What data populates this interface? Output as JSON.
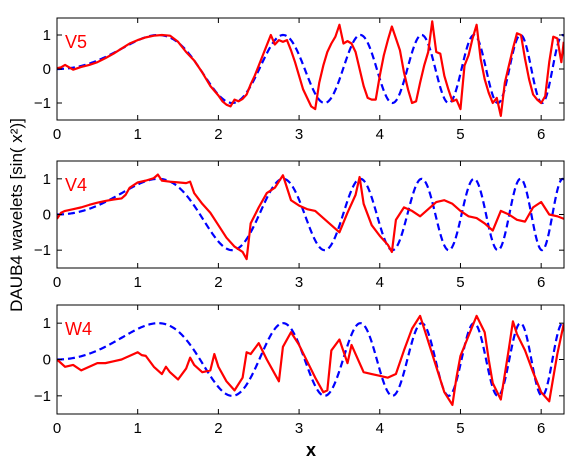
{
  "chart_data": {
    "type": "line",
    "ylabel": "DAUB4 wavelets [sin( x²)]",
    "xlabel": "x",
    "xlim": [
      0,
      6.283
    ],
    "ylim": [
      -1.5,
      1.5
    ],
    "xticks": [
      "0",
      "1",
      "2",
      "3",
      "4",
      "5",
      "6"
    ],
    "yticks": [
      "-1",
      "0",
      "1"
    ],
    "colors": {
      "reference": "#0000ff",
      "approximation": "#ff0000",
      "label": "#ff0000"
    },
    "panels": [
      {
        "label": "V5",
        "series": [
          {
            "style": "dashed-blue",
            "function": "sin(x^2)"
          },
          {
            "style": "solid-red",
            "x": [
              0,
              0.05,
              0.1,
              0.15,
              0.2,
              0.3,
              0.4,
              0.5,
              0.6,
              0.7,
              0.8,
              0.9,
              1.0,
              1.1,
              1.2,
              1.3,
              1.4,
              1.5,
              1.6,
              1.7,
              1.8,
              1.9,
              2.0,
              2.05,
              2.1,
              2.15,
              2.2,
              2.25,
              2.3,
              2.35,
              2.4,
              2.45,
              2.5,
              2.55,
              2.6,
              2.65,
              2.7,
              2.75,
              2.8,
              2.85,
              2.9,
              2.95,
              3.0,
              3.05,
              3.1,
              3.15,
              3.2,
              3.25,
              3.3,
              3.35,
              3.4,
              3.45,
              3.5,
              3.55,
              3.6,
              3.65,
              3.7,
              3.75,
              3.8,
              3.85,
              3.9,
              3.95,
              4.0,
              4.05,
              4.1,
              4.15,
              4.2,
              4.25,
              4.3,
              4.35,
              4.4,
              4.45,
              4.5,
              4.55,
              4.6,
              4.65,
              4.7,
              4.75,
              4.8,
              4.85,
              4.9,
              4.95,
              5.0,
              5.05,
              5.1,
              5.15,
              5.2,
              5.25,
              5.3,
              5.35,
              5.4,
              5.45,
              5.5,
              5.55,
              5.6,
              5.65,
              5.7,
              5.75,
              5.8,
              5.85,
              5.9,
              5.95,
              6.0,
              6.05,
              6.1,
              6.15,
              6.2,
              6.25,
              6.28
            ],
            "y": [
              0.02,
              0.05,
              0.12,
              0.05,
              -0.02,
              0.06,
              0.12,
              0.2,
              0.32,
              0.45,
              0.6,
              0.75,
              0.85,
              0.93,
              0.98,
              1.0,
              0.98,
              0.8,
              0.5,
              0.25,
              -0.1,
              -0.5,
              -0.78,
              -0.95,
              -1.05,
              -1.1,
              -0.9,
              -0.95,
              -0.88,
              -0.75,
              -0.45,
              -0.2,
              0.1,
              0.4,
              0.7,
              1.0,
              0.72,
              0.85,
              0.8,
              0.85,
              0.55,
              0.2,
              -0.2,
              -0.6,
              -0.85,
              -1.1,
              -1.18,
              -0.4,
              0.1,
              0.5,
              0.75,
              0.95,
              1.3,
              0.75,
              0.82,
              0.75,
              0.5,
              0.0,
              -0.5,
              -0.85,
              -0.9,
              -0.9,
              -0.2,
              0.4,
              0.85,
              1.25,
              0.9,
              0.55,
              -0.1,
              -0.6,
              -1.0,
              -0.95,
              -0.4,
              0.1,
              0.5,
              1.4,
              0.5,
              0.45,
              -0.2,
              -0.6,
              -0.95,
              -0.9,
              -1.18,
              0.1,
              0.4,
              0.9,
              1.3,
              0.3,
              -0.3,
              -0.7,
              -1.0,
              -0.85,
              -1.38,
              -0.4,
              0.1,
              0.6,
              1.05,
              1.0,
              0.3,
              -0.3,
              -0.75,
              -0.9,
              -1.0,
              -0.8,
              0.2,
              0.95,
              0.9,
              0.2,
              0.8
            ]
          }
        ]
      },
      {
        "label": "V4",
        "series": [
          {
            "style": "dashed-blue",
            "function": "sin(x^2)"
          },
          {
            "style": "solid-red",
            "x": [
              0,
              0.05,
              0.1,
              0.2,
              0.3,
              0.4,
              0.5,
              0.6,
              0.7,
              0.8,
              0.85,
              0.9,
              1.0,
              1.1,
              1.2,
              1.25,
              1.3,
              1.4,
              1.5,
              1.6,
              1.65,
              1.7,
              1.8,
              1.9,
              2.0,
              2.1,
              2.2,
              2.3,
              2.35,
              2.4,
              2.5,
              2.6,
              2.7,
              2.8,
              2.9,
              3.0,
              3.1,
              3.2,
              3.3,
              3.4,
              3.5,
              3.6,
              3.7,
              3.75,
              3.8,
              3.9,
              4.0,
              4.1,
              4.15,
              4.2,
              4.3,
              4.4,
              4.5,
              4.6,
              4.7,
              4.8,
              4.9,
              5.0,
              5.1,
              5.2,
              5.3,
              5.4,
              5.5,
              5.6,
              5.7,
              5.8,
              5.9,
              6.0,
              6.1,
              6.2,
              6.28
            ],
            "y": [
              -0.12,
              0.05,
              0.1,
              0.15,
              0.2,
              0.27,
              0.33,
              0.38,
              0.42,
              0.45,
              0.55,
              0.75,
              0.9,
              0.95,
              1.02,
              1.12,
              0.95,
              0.92,
              0.9,
              0.88,
              0.92,
              0.6,
              0.3,
              0.05,
              -0.3,
              -0.65,
              -0.9,
              -1.05,
              -1.25,
              -0.25,
              0.2,
              0.6,
              0.75,
              1.1,
              0.4,
              0.25,
              0.15,
              0.1,
              -0.1,
              -0.3,
              -0.5,
              0.05,
              0.55,
              1.05,
              0.3,
              -0.3,
              -0.6,
              -0.85,
              -1.05,
              -0.15,
              0.2,
              0.1,
              -0.05,
              0.15,
              0.35,
              0.4,
              0.3,
              0.1,
              -0.05,
              -0.1,
              -0.25,
              -0.45,
              0.1,
              0.0,
              -0.15,
              -0.2,
              0.2,
              0.35,
              0.0,
              -0.05,
              -0.12
            ]
          }
        ]
      },
      {
        "label": "W4",
        "series": [
          {
            "style": "dashed-blue",
            "function": "sin(x^2)"
          },
          {
            "style": "solid-red",
            "x": [
              0,
              0.1,
              0.2,
              0.3,
              0.4,
              0.5,
              0.6,
              0.7,
              0.8,
              0.9,
              1.0,
              1.05,
              1.1,
              1.2,
              1.3,
              1.35,
              1.4,
              1.5,
              1.6,
              1.65,
              1.7,
              1.8,
              1.9,
              1.95,
              2.0,
              2.1,
              2.2,
              2.3,
              2.35,
              2.4,
              2.5,
              2.6,
              2.7,
              2.75,
              2.8,
              2.9,
              3.0,
              3.1,
              3.2,
              3.3,
              3.35,
              3.4,
              3.5,
              3.6,
              3.65,
              3.7,
              3.8,
              3.9,
              4.0,
              4.1,
              4.2,
              4.3,
              4.35,
              4.4,
              4.5,
              4.6,
              4.7,
              4.8,
              4.9,
              4.95,
              5.0,
              5.1,
              5.2,
              5.3,
              5.35,
              5.4,
              5.5,
              5.6,
              5.65,
              5.7,
              5.8,
              5.9,
              6.0,
              6.1,
              6.2,
              6.28
            ],
            "y": [
              0.0,
              -0.2,
              -0.15,
              -0.3,
              -0.2,
              -0.1,
              -0.1,
              -0.05,
              0.0,
              0.1,
              0.2,
              0.12,
              0.1,
              -0.2,
              -0.4,
              -0.2,
              -0.35,
              -0.55,
              -0.25,
              0.05,
              -0.15,
              -0.35,
              -0.3,
              0.15,
              -0.2,
              -0.6,
              -0.85,
              -0.5,
              0.2,
              0.15,
              0.45,
              0.0,
              -0.4,
              -0.6,
              0.35,
              0.75,
              0.4,
              -0.05,
              -0.5,
              -0.9,
              -0.85,
              0.25,
              0.55,
              -0.1,
              0.4,
              0.15,
              -0.35,
              -0.4,
              -0.45,
              -0.5,
              -0.4,
              0.25,
              0.55,
              0.85,
              1.2,
              0.5,
              -0.2,
              -0.9,
              -1.25,
              -0.5,
              0.1,
              0.65,
              1.2,
              0.75,
              0.0,
              -0.65,
              -1.1,
              0.3,
              1.05,
              0.7,
              0.25,
              -0.35,
              -0.9,
              -1.15,
              0.15,
              0.98
            ]
          }
        ]
      }
    ]
  }
}
